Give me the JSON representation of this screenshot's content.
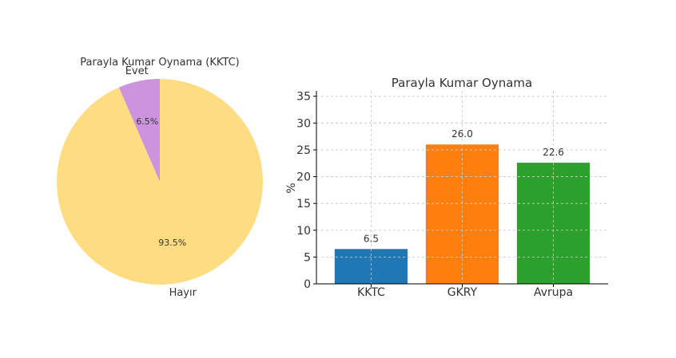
{
  "chart_data": [
    {
      "type": "pie",
      "title": "Parayla Kumar Oynama (KKTC)",
      "labels": [
        "Evet",
        "Hayır"
      ],
      "values": [
        6.5,
        93.5
      ],
      "value_labels": [
        "6.5%",
        "93.5%"
      ],
      "colors": [
        "#cc94dc",
        "#fedd82"
      ],
      "start_angle": "top",
      "direction": "counterclockwise"
    },
    {
      "type": "bar",
      "title": "Parayla Kumar Oynama",
      "categories": [
        "KKTC",
        "GKRY",
        "Avrupa"
      ],
      "values": [
        6.5,
        26.0,
        22.6
      ],
      "value_labels": [
        "6.5",
        "26.0",
        "22.6"
      ],
      "colors": [
        "#1f77b4",
        "#ff7f0e",
        "#2ca02c"
      ],
      "xlabel": "",
      "ylabel": "%",
      "ylim": [
        0,
        36
      ],
      "yticks": [
        0,
        5,
        10,
        15,
        20,
        25,
        30,
        35
      ],
      "ytick_labels": [
        "0",
        "5",
        "10",
        "15",
        "20",
        "25",
        "30",
        "35"
      ],
      "grid": true
    }
  ]
}
